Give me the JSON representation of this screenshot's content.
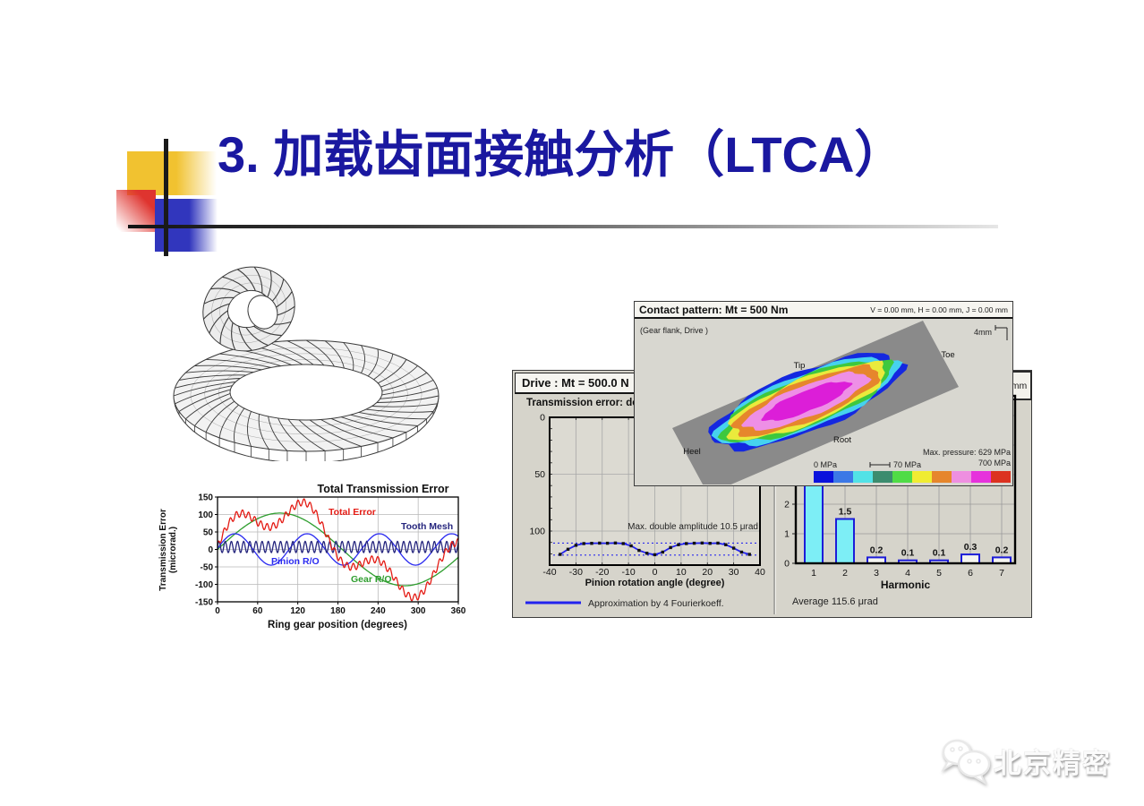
{
  "slide": {
    "title": "3. 加载齿面接触分析（LTCA）",
    "title_color": "#1a18a0",
    "accent_colors": {
      "yellow": "#f1c230",
      "red": "#df342f",
      "blue": "#3136bd"
    },
    "watermark": {
      "brand": "北京精密",
      "icon": "wechat-icon"
    }
  },
  "drive_window": {
    "title": "Drive :  Mt = 500.0 N",
    "unit_box": "mm",
    "te_panel": {
      "title": "Transmission error: de",
      "annotation": "Max. double amplitude  10.5 μrad",
      "xlabel": "Pinion rotation angle  (degree)",
      "legend": "Approximation by 4 Fourierkoeff."
    },
    "harmonic_panel": {
      "xlabel": "Harmonic",
      "average": "Average  115.6 μrad"
    }
  },
  "contact_window": {
    "title": "Contact pattern: Mt = 500 Nm",
    "offsets": "V = 0.00 mm,  H = 0.00 mm,  J = 0.00 mm",
    "flank_caption": "(Gear flank, Drive )",
    "scale_label": "4mm",
    "flank_labels": {
      "tip": "Tip",
      "toe": "Toe",
      "heel": "Heel",
      "root": "Root"
    },
    "legend": {
      "zero": "0 MPa",
      "seventy": "70 MPa",
      "max_line1": "Max. pressure: 629 MPa",
      "max_line2": "700 MPa",
      "colors": [
        "#0a12dc",
        "#3c78e6",
        "#52e2e6",
        "#3c8c6e",
        "#50dc46",
        "#f0ec32",
        "#e6862c",
        "#ee8fe0",
        "#e632dc",
        "#dc3220"
      ]
    },
    "contour_colors": [
      "#1428e0",
      "#46d2ee",
      "#3ec83e",
      "#eaea3c",
      "#e6862c",
      "#ee8fe6",
      "#dc1ed8"
    ]
  },
  "chart_data": [
    {
      "id": "total_transmission_error",
      "type": "line",
      "title": "Total Transmission Error",
      "xlabel": "Ring gear position (degrees)",
      "ylabel_line1": "Transmission Error",
      "ylabel_line2": "(microrad.)",
      "xlim": [
        0,
        360
      ],
      "ylim": [
        -150,
        150
      ],
      "xticks": [
        0,
        60,
        120,
        180,
        240,
        300,
        360
      ],
      "yticks": [
        -150,
        -100,
        -50,
        0,
        50,
        100,
        150
      ],
      "grid": true,
      "series": [
        {
          "name": "Gear R/O",
          "color": "#2f9e2f",
          "wave": {
            "offset": 0,
            "components": [
              {
                "amp": 104,
                "period": 373,
                "phase": 0
              }
            ],
            "ripple": null
          }
        },
        {
          "name": "Pinion R/O",
          "color": "#2a2af0",
          "wave": {
            "offset": 0,
            "components": [
              {
                "amp": 45,
                "period": 108,
                "phase": 1
              }
            ],
            "ripple": null
          }
        },
        {
          "name": "Tooth Mesh",
          "color": "#26267e",
          "wave": {
            "offset": 7,
            "components": [],
            "ripple": {
              "amp": 16,
              "period": 9.2,
              "phase": 0
            }
          }
        },
        {
          "name": "Total Error",
          "color": "#e41b14",
          "wave": {
            "offset": 7,
            "components": [
              {
                "amp": 104,
                "period": 373,
                "phase": 0
              },
              {
                "amp": 44,
                "period": 108,
                "phase": 1
              }
            ],
            "ripple": {
              "amp": 10,
              "period": 9.2,
              "phase": 1.2
            }
          }
        }
      ]
    },
    {
      "id": "drive_transmission_error",
      "type": "line",
      "xlim": [
        -40,
        40
      ],
      "ylim_inverted": [
        0,
        132
      ],
      "xticks": [
        -40,
        -30,
        -20,
        -10,
        0,
        10,
        20,
        30,
        40
      ],
      "yticks": [
        0,
        50,
        100
      ],
      "dashed_levels": [
        110.6,
        121.1
      ],
      "line_color": "#2222ee",
      "points": [
        [
          -36,
          120.5
        ],
        [
          -33,
          116
        ],
        [
          -30,
          112.5
        ],
        [
          -27,
          111
        ],
        [
          -24,
          110.8
        ],
        [
          -21,
          110.6
        ],
        [
          -18,
          110.7
        ],
        [
          -15,
          110.5
        ],
        [
          -12,
          111
        ],
        [
          -9,
          113
        ],
        [
          -6,
          117
        ],
        [
          -3,
          119.5
        ],
        [
          0,
          120.8
        ],
        [
          3,
          118.5
        ],
        [
          6,
          114.5
        ],
        [
          9,
          112
        ],
        [
          12,
          111
        ],
        [
          15,
          110.7
        ],
        [
          18,
          110.5
        ],
        [
          21,
          110.8
        ],
        [
          24,
          110.6
        ],
        [
          27,
          112
        ],
        [
          30,
          115
        ],
        [
          33,
          118.5
        ],
        [
          36,
          120.5
        ]
      ]
    },
    {
      "id": "harmonics",
      "type": "bar",
      "categories": [
        "1",
        "2",
        "3",
        "4",
        "5",
        "6",
        "7"
      ],
      "values": [
        5.5,
        1.5,
        0.2,
        0.1,
        0.1,
        0.3,
        0.2
      ],
      "labels": [
        "",
        "1.5",
        "0.2",
        "0.1",
        "0.1",
        "0.3",
        "0.2"
      ],
      "yticks": [
        0,
        1,
        2
      ],
      "bar_fill_tall": "#7deef6",
      "bar_fill_small": "#f4f4f0",
      "bar_edge": "#1c1cd8"
    }
  ]
}
